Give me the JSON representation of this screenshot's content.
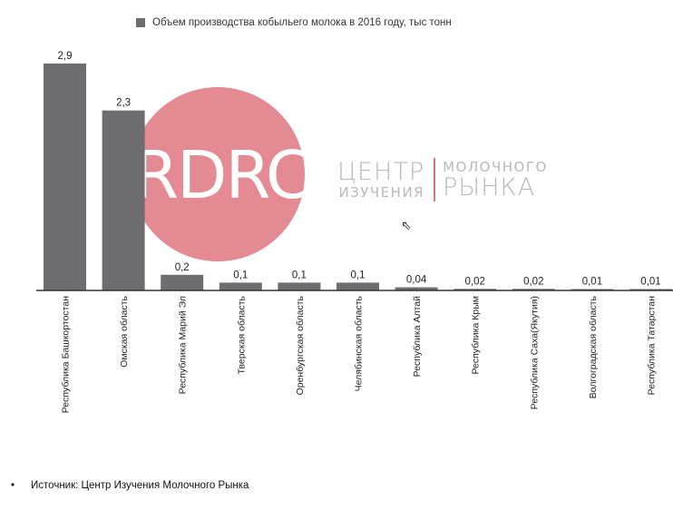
{
  "legend": {
    "label": "Объем производства кобыльего молока в 2016 году,  тыс тонн"
  },
  "logo": {
    "circle_text": "RDRC",
    "line1_left": "ЦЕНТР",
    "line2_left": "ИЗУЧЕНИЯ",
    "line1_right": "МОЛОЧНОГО",
    "line2_right": "РЫНКА"
  },
  "source": {
    "bullet": "•",
    "text": "Источник: Центр Изучения Молочного Рынка"
  },
  "colors": {
    "bar": "#6d6d71",
    "axis": "#333333",
    "logo_circle": "#e38a93",
    "logo_text": "#b9b9bb",
    "logo_sep": "#d8737d"
  },
  "chart_data": {
    "type": "bar",
    "title": "",
    "xlabel": "",
    "ylabel": "",
    "ylim": [
      0,
      2.9
    ],
    "grid": false,
    "legend_position": "top",
    "series": [
      {
        "name": "Объем производства кобыльего молока в 2016 году,  тыс тонн"
      }
    ],
    "categories": [
      "Республика Башкортостан",
      "Омская область",
      "Республика Марий Эл",
      "Тверская область",
      "Оренбургская область",
      "Челябинская область",
      "Республика Алтай",
      "Республика Крым",
      "Республика Саха(Якутия)",
      "Волгоградская область",
      "Республика Татарстан"
    ],
    "values": [
      2.9,
      2.3,
      0.2,
      0.1,
      0.1,
      0.1,
      0.04,
      0.02,
      0.02,
      0.01,
      0.01
    ],
    "value_labels": [
      "2,9",
      "2,3",
      "0,2",
      "0,1",
      "0,1",
      "0,1",
      "0,04",
      "0,02",
      "0,02",
      "0,01",
      "0,01"
    ]
  }
}
